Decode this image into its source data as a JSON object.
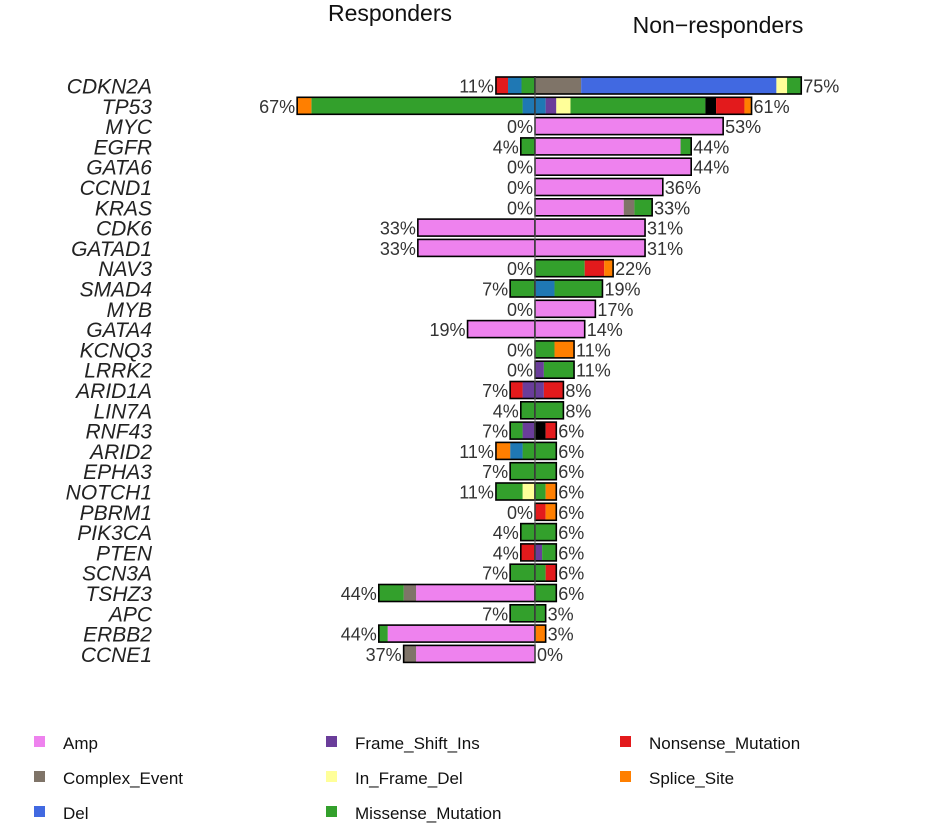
{
  "chart_data": {
    "type": "bar",
    "orientation": "horizontal",
    "layout": "back-to-back",
    "groups": [
      "Responders",
      "Non−responders"
    ],
    "x_max_percent": 75,
    "categories": [
      "CDKN2A",
      "TP53",
      "MYC",
      "EGFR",
      "GATA6",
      "CCND1",
      "KRAS",
      "CDK6",
      "GATAD1",
      "NAV3",
      "SMAD4",
      "MYB",
      "GATA4",
      "KCNQ3",
      "LRRK2",
      "ARID1A",
      "LIN7A",
      "RNF43",
      "ARID2",
      "EPHA3",
      "NOTCH1",
      "PBRM1",
      "PIK3CA",
      "PTEN",
      "SCN3A",
      "TSHZ3",
      "APC",
      "ERBB2",
      "CCNE1"
    ],
    "colors": {
      "Amp": "#ee82ee",
      "Complex_Event": "#7f7468",
      "Del": "#4169e1",
      "Frame_Shift_Ins": "#6a3d9a",
      "In_Frame_Del": "#ffff99",
      "Missense_Mutation": "#33a02c",
      "Nonsense_Mutation": "#e31a1c",
      "Splice_Site": "#ff7f00",
      "Multi_Hit": "#000000",
      "Frame_Shift_Del": "#1f78b4"
    },
    "legend": {
      "position": "bottom",
      "items": [
        {
          "key": "Amp",
          "label": "Amp"
        },
        {
          "key": "Complex_Event",
          "label": "Complex_Event"
        },
        {
          "key": "Del",
          "label": "Del"
        },
        {
          "key": "Frame_Shift_Ins",
          "label": "Frame_Shift_Ins"
        },
        {
          "key": "In_Frame_Del",
          "label": "In_Frame_Del"
        },
        {
          "key": "Missense_Mutation",
          "label": "Missense_Mutation"
        },
        {
          "key": "Nonsense_Mutation",
          "label": "Nonsense_Mutation"
        },
        {
          "key": "Splice_Site",
          "label": "Splice_Site"
        }
      ]
    },
    "rows": [
      {
        "gene": "CDKN2A",
        "left_pct": "11%",
        "right_pct": "75%",
        "left": [
          [
            "Missense_Mutation",
            3.8
          ],
          [
            "Frame_Shift_Del",
            3.8
          ],
          [
            "Nonsense_Mutation",
            3.4
          ]
        ],
        "right": [
          [
            "Complex_Event",
            13
          ],
          [
            "Del",
            55
          ],
          [
            "In_Frame_Del",
            3
          ],
          [
            "Missense_Mutation",
            4
          ]
        ]
      },
      {
        "gene": "TP53",
        "left_pct": "67%",
        "right_pct": "61%",
        "left": [
          [
            "Frame_Shift_Del",
            3.5
          ],
          [
            "Missense_Mutation",
            59.5
          ],
          [
            "Splice_Site",
            4
          ]
        ],
        "right": [
          [
            "Frame_Shift_Del",
            3
          ],
          [
            "Frame_Shift_Ins",
            3
          ],
          [
            "In_Frame_Del",
            4
          ],
          [
            "Missense_Mutation",
            38
          ],
          [
            "Multi_Hit",
            3
          ],
          [
            "Nonsense_Mutation",
            8
          ],
          [
            "Splice_Site",
            2
          ]
        ]
      },
      {
        "gene": "MYC",
        "left_pct": "0%",
        "right_pct": "53%",
        "left": [],
        "right": [
          [
            "Amp",
            53
          ]
        ]
      },
      {
        "gene": "EGFR",
        "left_pct": "4%",
        "right_pct": "44%",
        "left": [
          [
            "Missense_Mutation",
            4
          ]
        ],
        "right": [
          [
            "Amp",
            41
          ],
          [
            "Missense_Mutation",
            3
          ]
        ]
      },
      {
        "gene": "GATA6",
        "left_pct": "0%",
        "right_pct": "44%",
        "left": [],
        "right": [
          [
            "Amp",
            44
          ]
        ]
      },
      {
        "gene": "CCND1",
        "left_pct": "0%",
        "right_pct": "36%",
        "left": [],
        "right": [
          [
            "Amp",
            36
          ]
        ]
      },
      {
        "gene": "KRAS",
        "left_pct": "0%",
        "right_pct": "33%",
        "left": [],
        "right": [
          [
            "Amp",
            25
          ],
          [
            "Complex_Event",
            3
          ],
          [
            "Missense_Mutation",
            5
          ]
        ]
      },
      {
        "gene": "CDK6",
        "left_pct": "33%",
        "right_pct": "31%",
        "left": [
          [
            "Amp",
            33
          ]
        ],
        "right": [
          [
            "Amp",
            31
          ]
        ]
      },
      {
        "gene": "GATAD1",
        "left_pct": "33%",
        "right_pct": "31%",
        "left": [
          [
            "Amp",
            33
          ]
        ],
        "right": [
          [
            "Amp",
            31
          ]
        ]
      },
      {
        "gene": "NAV3",
        "left_pct": "0%",
        "right_pct": "22%",
        "left": [],
        "right": [
          [
            "Missense_Mutation",
            14
          ],
          [
            "Nonsense_Mutation",
            5.5
          ],
          [
            "Splice_Site",
            2.5
          ]
        ]
      },
      {
        "gene": "SMAD4",
        "left_pct": "7%",
        "right_pct": "19%",
        "left": [
          [
            "Missense_Mutation",
            7
          ]
        ],
        "right": [
          [
            "Frame_Shift_Del",
            5.5
          ],
          [
            "Missense_Mutation",
            13.5
          ]
        ]
      },
      {
        "gene": "MYB",
        "left_pct": "0%",
        "right_pct": "17%",
        "left": [],
        "right": [
          [
            "Amp",
            17
          ]
        ]
      },
      {
        "gene": "GATA4",
        "left_pct": "19%",
        "right_pct": "14%",
        "left": [
          [
            "Amp",
            19
          ]
        ],
        "right": [
          [
            "Amp",
            14
          ]
        ]
      },
      {
        "gene": "KCNQ3",
        "left_pct": "0%",
        "right_pct": "11%",
        "left": [],
        "right": [
          [
            "Missense_Mutation",
            5.5
          ],
          [
            "Splice_Site",
            5.5
          ]
        ]
      },
      {
        "gene": "LRRK2",
        "left_pct": "0%",
        "right_pct": "11%",
        "left": [],
        "right": [
          [
            "Frame_Shift_Ins",
            2.5
          ],
          [
            "Missense_Mutation",
            8.5
          ]
        ]
      },
      {
        "gene": "ARID1A",
        "left_pct": "7%",
        "right_pct": "8%",
        "left": [
          [
            "Frame_Shift_Ins",
            3.5
          ],
          [
            "Nonsense_Mutation",
            3.5
          ]
        ],
        "right": [
          [
            "Frame_Shift_Ins",
            2.5
          ],
          [
            "Nonsense_Mutation",
            5.5
          ]
        ]
      },
      {
        "gene": "LIN7A",
        "left_pct": "4%",
        "right_pct": "8%",
        "left": [
          [
            "Missense_Mutation",
            4
          ]
        ],
        "right": [
          [
            "Missense_Mutation",
            8
          ]
        ]
      },
      {
        "gene": "RNF43",
        "left_pct": "7%",
        "right_pct": "6%",
        "left": [
          [
            "Frame_Shift_Ins",
            3.5
          ],
          [
            "Missense_Mutation",
            3.5
          ]
        ],
        "right": [
          [
            "Multi_Hit",
            3
          ],
          [
            "Nonsense_Mutation",
            3
          ]
        ]
      },
      {
        "gene": "ARID2",
        "left_pct": "11%",
        "right_pct": "6%",
        "left": [
          [
            "Missense_Mutation",
            3.5
          ],
          [
            "Frame_Shift_Del",
            3.5
          ],
          [
            "Splice_Site",
            4
          ]
        ],
        "right": [
          [
            "Missense_Mutation",
            6
          ]
        ]
      },
      {
        "gene": "EPHA3",
        "left_pct": "7%",
        "right_pct": "6%",
        "left": [
          [
            "Missense_Mutation",
            7
          ]
        ],
        "right": [
          [
            "Missense_Mutation",
            6
          ]
        ]
      },
      {
        "gene": "NOTCH1",
        "left_pct": "11%",
        "right_pct": "6%",
        "left": [
          [
            "In_Frame_Del",
            3.5
          ],
          [
            "Missense_Mutation",
            7.5
          ]
        ],
        "right": [
          [
            "Missense_Mutation",
            3
          ],
          [
            "Splice_Site",
            3
          ]
        ]
      },
      {
        "gene": "PBRM1",
        "left_pct": "0%",
        "right_pct": "6%",
        "left": [],
        "right": [
          [
            "Nonsense_Mutation",
            3
          ],
          [
            "Splice_Site",
            3
          ]
        ]
      },
      {
        "gene": "PIK3CA",
        "left_pct": "4%",
        "right_pct": "6%",
        "left": [
          [
            "Missense_Mutation",
            4
          ]
        ],
        "right": [
          [
            "Missense_Mutation",
            6
          ]
        ]
      },
      {
        "gene": "PTEN",
        "left_pct": "4%",
        "right_pct": "6%",
        "left": [
          [
            "Nonsense_Mutation",
            4
          ]
        ],
        "right": [
          [
            "Frame_Shift_Ins",
            2
          ],
          [
            "Missense_Mutation",
            4
          ]
        ]
      },
      {
        "gene": "SCN3A",
        "left_pct": "7%",
        "right_pct": "6%",
        "left": [
          [
            "Missense_Mutation",
            7
          ]
        ],
        "right": [
          [
            "Missense_Mutation",
            3
          ],
          [
            "Nonsense_Mutation",
            3
          ]
        ]
      },
      {
        "gene": "TSHZ3",
        "left_pct": "44%",
        "right_pct": "6%",
        "left": [
          [
            "Amp",
            33.5
          ],
          [
            "Complex_Event",
            3.5
          ],
          [
            "Missense_Mutation",
            7
          ]
        ],
        "right": [
          [
            "Missense_Mutation",
            6
          ]
        ]
      },
      {
        "gene": "APC",
        "left_pct": "7%",
        "right_pct": "3%",
        "left": [
          [
            "Missense_Mutation",
            7
          ]
        ],
        "right": [
          [
            "Missense_Mutation",
            3
          ]
        ]
      },
      {
        "gene": "ERBB2",
        "left_pct": "44%",
        "right_pct": "3%",
        "left": [
          [
            "Amp",
            41.5
          ],
          [
            "Missense_Mutation",
            2.5
          ]
        ],
        "right": [
          [
            "Splice_Site",
            3
          ]
        ]
      },
      {
        "gene": "CCNE1",
        "left_pct": "37%",
        "right_pct": "0%",
        "left": [
          [
            "Amp",
            33.5
          ],
          [
            "Complex_Event",
            3.5
          ]
        ],
        "right": []
      }
    ]
  }
}
